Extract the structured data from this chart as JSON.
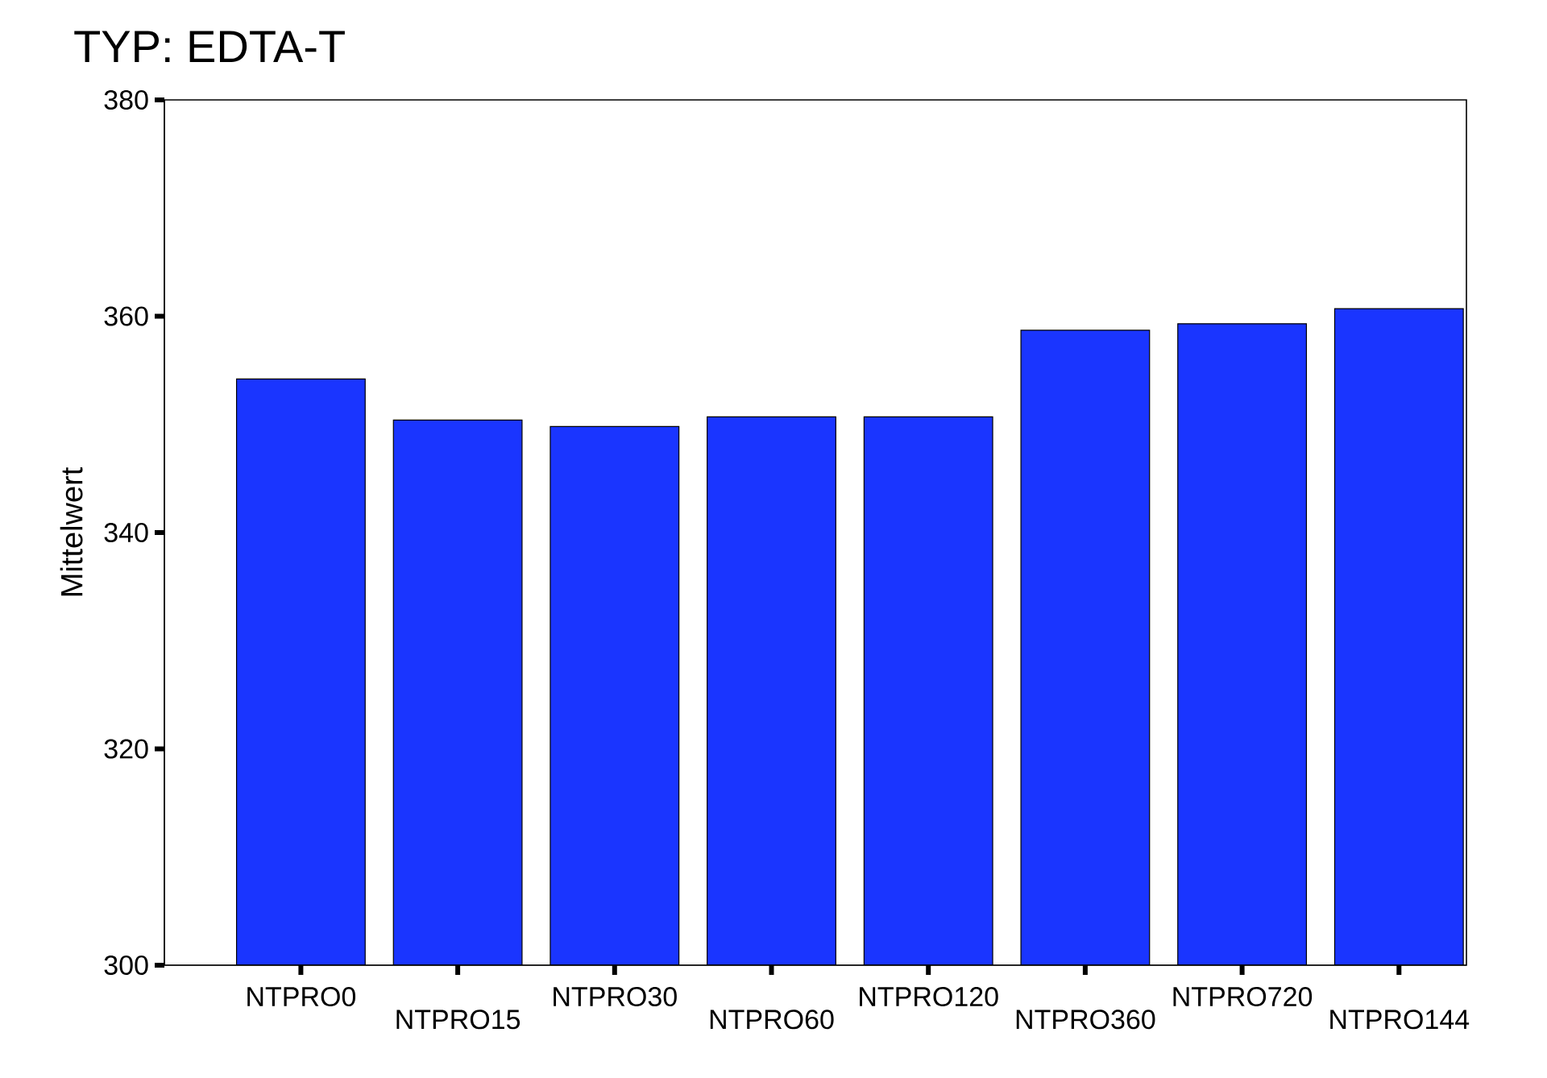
{
  "chart_data": {
    "type": "bar",
    "title": "TYP:  EDTA-T",
    "ylabel": "Mittelwert",
    "categories": [
      "NTPRO0",
      "NTPRO15",
      "NTPRO30",
      "NTPRO60",
      "NTPRO120",
      "NTPRO360",
      "NTPRO720",
      "NTPRO144"
    ],
    "values": [
      354.2,
      350.4,
      349.8,
      350.7,
      350.7,
      358.7,
      359.3,
      360.7
    ],
    "color": "#1a35ff",
    "ylim": [
      300,
      380
    ],
    "yticks": [
      300,
      320,
      340,
      360,
      380
    ]
  }
}
